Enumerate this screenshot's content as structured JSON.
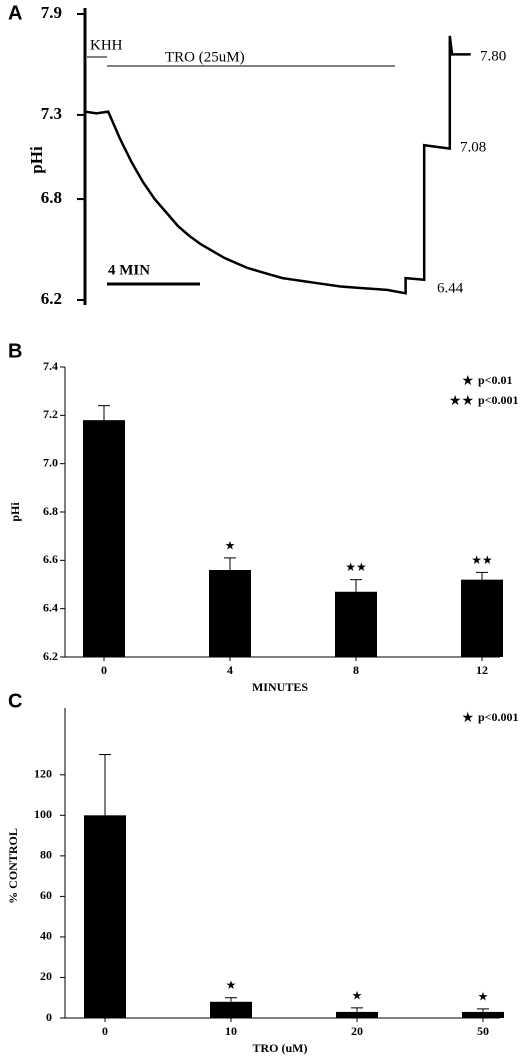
{
  "chart_data": [
    {
      "type": "line",
      "panel": "A",
      "ylabel": "pHi",
      "ylim": [
        6.2,
        7.9
      ],
      "yticks": [
        6.2,
        6.8,
        7.3,
        7.9
      ],
      "xlim": [
        0,
        17
      ],
      "treatments": [
        "KHH",
        "TRO (25uM)"
      ],
      "scale_bar": "4 MIN",
      "step_labels": [
        "6.44",
        "7.08",
        "7.80"
      ],
      "series": [
        {
          "color": "#000000",
          "x": [
            0,
            0.5,
            1,
            1.5,
            2,
            2.5,
            3,
            3.5,
            4,
            4.5,
            5,
            5.5,
            6,
            6.5,
            7,
            7.5,
            8,
            8.5,
            9,
            9.5,
            10,
            11,
            12,
            13,
            13.8,
            13.8,
            14.6,
            14.6,
            15.7,
            15.7,
            15.8,
            16.6
          ],
          "values": [
            7.32,
            7.31,
            7.32,
            7.16,
            7.02,
            6.9,
            6.8,
            6.72,
            6.64,
            6.58,
            6.53,
            6.49,
            6.45,
            6.42,
            6.39,
            6.37,
            6.35,
            6.33,
            6.32,
            6.31,
            6.3,
            6.28,
            6.27,
            6.26,
            6.24,
            6.33,
            6.32,
            7.12,
            7.1,
            7.77,
            7.66,
            7.66
          ]
        }
      ]
    },
    {
      "type": "bar",
      "panel": "B",
      "xlabel": "MINUTES",
      "ylabel": "pHi",
      "categories": [
        "0",
        "4",
        "8",
        "12"
      ],
      "values": [
        7.18,
        6.56,
        6.47,
        6.52
      ],
      "errors": [
        0.06,
        0.05,
        0.05,
        0.03
      ],
      "significance": [
        null,
        "★",
        "★★",
        "★★"
      ],
      "legend": [
        {
          "symbol": "★",
          "label": "p<0.01"
        },
        {
          "symbol": "★★",
          "label": "p<0.001"
        }
      ],
      "color": "#000000",
      "ylim": [
        6.2,
        7.4
      ],
      "yticks": [
        6.2,
        6.4,
        6.6,
        6.8,
        {
          "value": 7,
          "label": "7.0"
        },
        7.2,
        7.4
      ]
    },
    {
      "type": "bar",
      "panel": "C",
      "xlabel": "TRO (uM)",
      "ylabel": "% CONTROL",
      "categories": [
        "0",
        "10",
        "20",
        "50"
      ],
      "values": [
        100,
        8,
        3,
        3
      ],
      "errors": [
        30,
        2,
        2,
        1.5
      ],
      "significance": [
        null,
        "★",
        "★",
        "★"
      ],
      "legend": [
        {
          "symbol": "★",
          "label": "p<0.001"
        }
      ],
      "color": "#000000",
      "ylim": [
        0,
        150
      ],
      "yticks": [
        0,
        20,
        40,
        60,
        80,
        100,
        120
      ]
    }
  ]
}
